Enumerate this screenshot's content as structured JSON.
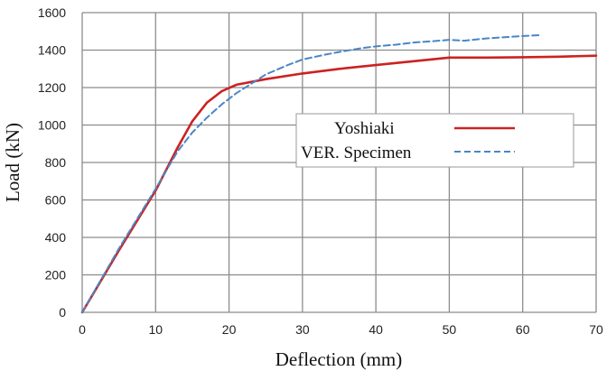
{
  "chart_data": {
    "type": "line",
    "xlabel": "Deflection (mm)",
    "ylabel": "Load (kN)",
    "xlim": [
      0,
      70
    ],
    "ylim": [
      0,
      1600
    ],
    "xticks": [
      0,
      10,
      20,
      30,
      40,
      50,
      60,
      70
    ],
    "yticks": [
      0,
      200,
      400,
      600,
      800,
      1000,
      1200,
      1400,
      1600
    ],
    "grid": true,
    "legend_position": "center-right",
    "series": [
      {
        "name": "Yoshiaki",
        "color": "#cc2222",
        "style": "solid",
        "x": [
          0,
          5,
          10,
          13,
          15,
          17,
          19,
          21,
          25,
          30,
          35,
          40,
          45,
          50,
          55,
          60,
          65,
          70
        ],
        "y": [
          0,
          330,
          650,
          880,
          1020,
          1120,
          1180,
          1215,
          1245,
          1275,
          1300,
          1320,
          1340,
          1360,
          1360,
          1362,
          1365,
          1370
        ]
      },
      {
        "name": "VER. Specimen",
        "color": "#4a86c5",
        "style": "dashed",
        "x": [
          0,
          5,
          10,
          13,
          15,
          17,
          19,
          21,
          23,
          25,
          28,
          30,
          33,
          35,
          38,
          40,
          43,
          45,
          48,
          50,
          52,
          55,
          58,
          60,
          62.5
        ],
        "y": [
          0,
          340,
          660,
          860,
          960,
          1040,
          1110,
          1170,
          1220,
          1270,
          1320,
          1350,
          1375,
          1390,
          1410,
          1420,
          1430,
          1440,
          1448,
          1455,
          1450,
          1462,
          1470,
          1475,
          1480
        ]
      }
    ]
  }
}
